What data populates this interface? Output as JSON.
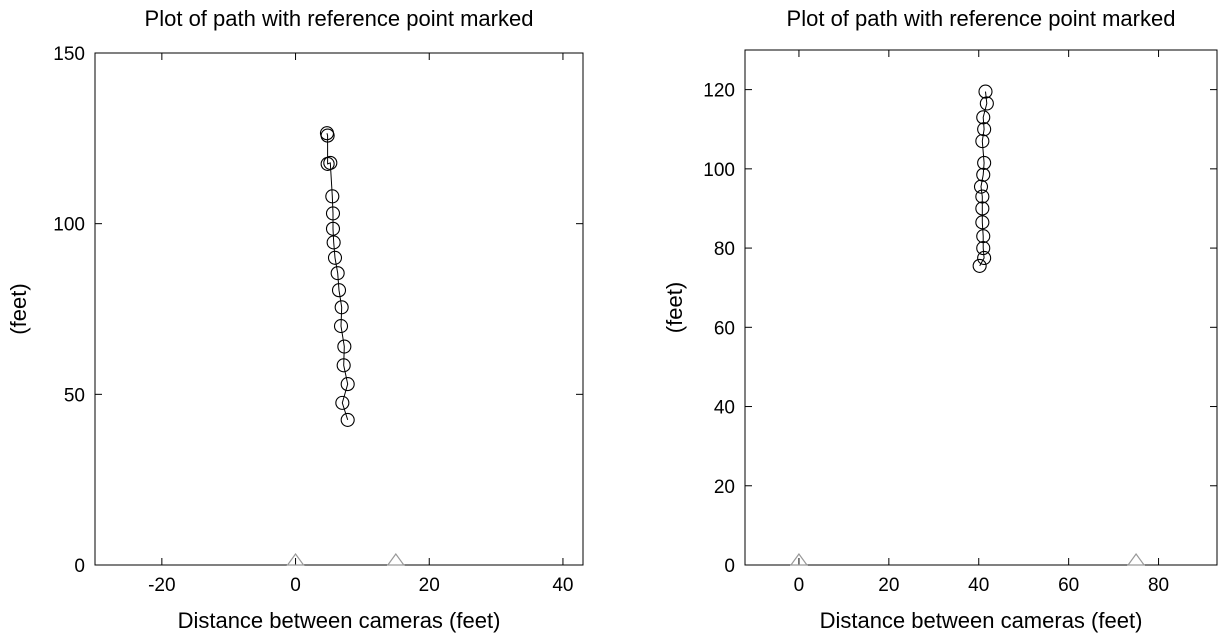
{
  "chart_data": [
    {
      "type": "scatter",
      "title": "Plot of path with reference point marked",
      "xlabel": "Distance between cameras (feet)",
      "ylabel": "(feet)",
      "xlim": [
        -30,
        43
      ],
      "ylim": [
        0,
        150
      ],
      "xticks": [
        -20,
        0,
        20,
        40
      ],
      "yticks": [
        0,
        50,
        100,
        150
      ],
      "grid": false,
      "colors": {
        "path": "#000000",
        "camera": "#999999"
      },
      "path": {
        "marker": "circle",
        "connected": true,
        "points": [
          {
            "x": 4.7,
            "y": 126.5
          },
          {
            "x": 4.8,
            "y": 125.8
          },
          {
            "x": 4.8,
            "y": 117.5
          },
          {
            "x": 5.2,
            "y": 117.8
          },
          {
            "x": 5.5,
            "y": 108.0
          },
          {
            "x": 5.6,
            "y": 103.0
          },
          {
            "x": 5.6,
            "y": 98.5
          },
          {
            "x": 5.7,
            "y": 94.5
          },
          {
            "x": 5.9,
            "y": 90.0
          },
          {
            "x": 6.3,
            "y": 85.5
          },
          {
            "x": 6.5,
            "y": 80.5
          },
          {
            "x": 6.9,
            "y": 75.5
          },
          {
            "x": 6.8,
            "y": 70.0
          },
          {
            "x": 7.3,
            "y": 64.0
          },
          {
            "x": 7.2,
            "y": 58.5
          },
          {
            "x": 7.8,
            "y": 53.0
          },
          {
            "x": 7.0,
            "y": 47.5
          },
          {
            "x": 7.8,
            "y": 42.5
          }
        ]
      },
      "cameras": {
        "marker": "triangle",
        "points": [
          {
            "x": 0,
            "y": 0
          },
          {
            "x": 15,
            "y": 0
          }
        ]
      }
    },
    {
      "type": "scatter",
      "title": "Plot of path with reference point marked",
      "xlabel": "Distance between cameras (feet)",
      "ylabel": "(feet)",
      "xlim": [
        -12,
        93
      ],
      "ylim": [
        0,
        130
      ],
      "xticks": [
        0,
        20,
        40,
        60,
        80
      ],
      "yticks": [
        0,
        20,
        40,
        60,
        80,
        100,
        120
      ],
      "grid": false,
      "colors": {
        "path": "#000000",
        "camera": "#999999"
      },
      "path": {
        "marker": "circle",
        "connected": true,
        "points": [
          {
            "x": 41.5,
            "y": 119.5
          },
          {
            "x": 41.8,
            "y": 116.5
          },
          {
            "x": 41.0,
            "y": 113.0
          },
          {
            "x": 41.2,
            "y": 110.0
          },
          {
            "x": 40.8,
            "y": 107.0
          },
          {
            "x": 41.2,
            "y": 101.5
          },
          {
            "x": 41.0,
            "y": 98.5
          },
          {
            "x": 40.5,
            "y": 95.5
          },
          {
            "x": 40.8,
            "y": 93.0
          },
          {
            "x": 40.8,
            "y": 90.0
          },
          {
            "x": 40.8,
            "y": 86.5
          },
          {
            "x": 41.0,
            "y": 83.0
          },
          {
            "x": 41.0,
            "y": 80.0
          },
          {
            "x": 41.2,
            "y": 77.5
          },
          {
            "x": 40.2,
            "y": 75.5
          }
        ]
      },
      "cameras": {
        "marker": "triangle",
        "points": [
          {
            "x": 0,
            "y": 0
          },
          {
            "x": 75,
            "y": 0
          }
        ]
      }
    }
  ]
}
